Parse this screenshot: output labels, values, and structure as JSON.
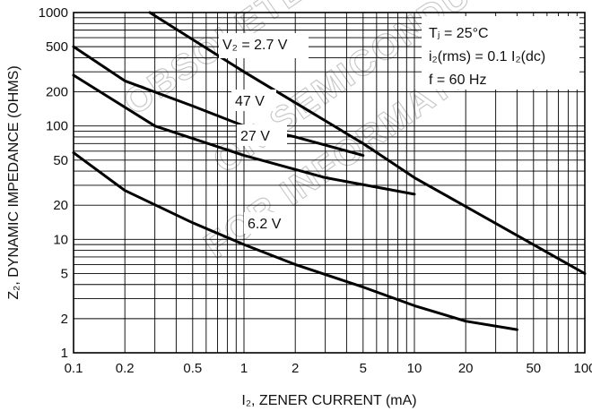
{
  "chart_data": {
    "type": "line",
    "xlabel": "I₂, ZENER CURRENT (mA)",
    "ylabel": "Z₂, DYNAMIC IMPEDANCE (OHMS)",
    "x_scale": "log",
    "y_scale": "log",
    "xlim": [
      0.1,
      100
    ],
    "ylim": [
      1,
      1000
    ],
    "grid": true,
    "x_ticks": [
      0.1,
      0.2,
      0.5,
      1,
      2,
      5,
      10,
      20,
      50,
      100
    ],
    "x_tick_labels": [
      "0.1",
      "0.2",
      "0.5",
      "1",
      "2",
      "5",
      "10",
      "20",
      "50",
      "100"
    ],
    "y_ticks": [
      1,
      2,
      5,
      10,
      20,
      50,
      100,
      200,
      500,
      1000
    ],
    "y_tick_labels": [
      "1",
      "2",
      "5",
      "10",
      "20",
      "50",
      "100",
      "200",
      "500",
      "1000"
    ],
    "series": [
      {
        "name": "V₂ = 2.7 V",
        "x": [
          0.28,
          1,
          5,
          10,
          100
        ],
        "y": [
          1000,
          300,
          70,
          35,
          5
        ]
      },
      {
        "name": "47 V",
        "x": [
          0.1,
          0.2,
          0.5,
          1,
          2,
          5
        ],
        "y": [
          500,
          250,
          150,
          100,
          80,
          55
        ]
      },
      {
        "name": "27 V",
        "x": [
          0.1,
          0.3,
          1,
          3,
          10
        ],
        "y": [
          280,
          100,
          55,
          35,
          25
        ]
      },
      {
        "name": "6.2 V",
        "x": [
          0.1,
          0.2,
          0.5,
          1,
          2,
          5,
          10,
          20,
          40
        ],
        "y": [
          58,
          27,
          14,
          9,
          6,
          3.8,
          2.6,
          1.9,
          1.6
        ]
      }
    ],
    "annotations": {
      "tj": "Tⱼ = 25°C",
      "iz_rms": "i₂(rms) = 0.1 I₂(dc)",
      "freq": "f = 60 Hz"
    },
    "watermark": [
      "OBSOLETE",
      "ON SEMICONDUCTOR",
      "FOR INFORMATION"
    ]
  }
}
